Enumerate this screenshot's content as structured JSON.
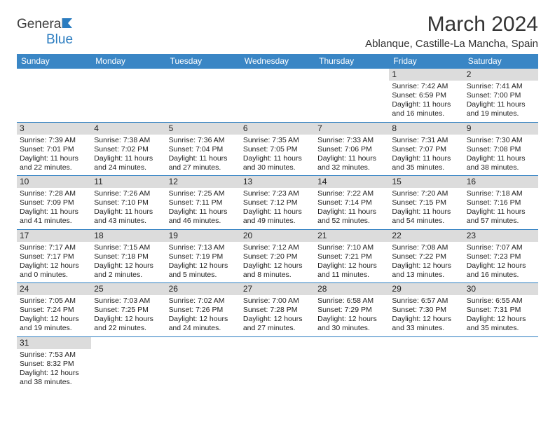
{
  "logo": {
    "text1": "General",
    "text2": "Blue"
  },
  "title": "March 2024",
  "location": "Ablanque, Castille-La Mancha, Spain",
  "weekdays": [
    "Sunday",
    "Monday",
    "Tuesday",
    "Wednesday",
    "Thursday",
    "Friday",
    "Saturday"
  ],
  "colors": {
    "header_bg": "#3a86c5",
    "daynum_bg": "#dcdcdc",
    "row_border": "#2a7cc0",
    "logo_blue": "#2a7cc0"
  },
  "weeks": [
    [
      null,
      null,
      null,
      null,
      null,
      {
        "n": "1",
        "sr": "Sunrise: 7:42 AM",
        "ss": "Sunset: 6:59 PM",
        "d1": "Daylight: 11 hours",
        "d2": "and 16 minutes."
      },
      {
        "n": "2",
        "sr": "Sunrise: 7:41 AM",
        "ss": "Sunset: 7:00 PM",
        "d1": "Daylight: 11 hours",
        "d2": "and 19 minutes."
      }
    ],
    [
      {
        "n": "3",
        "sr": "Sunrise: 7:39 AM",
        "ss": "Sunset: 7:01 PM",
        "d1": "Daylight: 11 hours",
        "d2": "and 22 minutes."
      },
      {
        "n": "4",
        "sr": "Sunrise: 7:38 AM",
        "ss": "Sunset: 7:02 PM",
        "d1": "Daylight: 11 hours",
        "d2": "and 24 minutes."
      },
      {
        "n": "5",
        "sr": "Sunrise: 7:36 AM",
        "ss": "Sunset: 7:04 PM",
        "d1": "Daylight: 11 hours",
        "d2": "and 27 minutes."
      },
      {
        "n": "6",
        "sr": "Sunrise: 7:35 AM",
        "ss": "Sunset: 7:05 PM",
        "d1": "Daylight: 11 hours",
        "d2": "and 30 minutes."
      },
      {
        "n": "7",
        "sr": "Sunrise: 7:33 AM",
        "ss": "Sunset: 7:06 PM",
        "d1": "Daylight: 11 hours",
        "d2": "and 32 minutes."
      },
      {
        "n": "8",
        "sr": "Sunrise: 7:31 AM",
        "ss": "Sunset: 7:07 PM",
        "d1": "Daylight: 11 hours",
        "d2": "and 35 minutes."
      },
      {
        "n": "9",
        "sr": "Sunrise: 7:30 AM",
        "ss": "Sunset: 7:08 PM",
        "d1": "Daylight: 11 hours",
        "d2": "and 38 minutes."
      }
    ],
    [
      {
        "n": "10",
        "sr": "Sunrise: 7:28 AM",
        "ss": "Sunset: 7:09 PM",
        "d1": "Daylight: 11 hours",
        "d2": "and 41 minutes."
      },
      {
        "n": "11",
        "sr": "Sunrise: 7:26 AM",
        "ss": "Sunset: 7:10 PM",
        "d1": "Daylight: 11 hours",
        "d2": "and 43 minutes."
      },
      {
        "n": "12",
        "sr": "Sunrise: 7:25 AM",
        "ss": "Sunset: 7:11 PM",
        "d1": "Daylight: 11 hours",
        "d2": "and 46 minutes."
      },
      {
        "n": "13",
        "sr": "Sunrise: 7:23 AM",
        "ss": "Sunset: 7:12 PM",
        "d1": "Daylight: 11 hours",
        "d2": "and 49 minutes."
      },
      {
        "n": "14",
        "sr": "Sunrise: 7:22 AM",
        "ss": "Sunset: 7:14 PM",
        "d1": "Daylight: 11 hours",
        "d2": "and 52 minutes."
      },
      {
        "n": "15",
        "sr": "Sunrise: 7:20 AM",
        "ss": "Sunset: 7:15 PM",
        "d1": "Daylight: 11 hours",
        "d2": "and 54 minutes."
      },
      {
        "n": "16",
        "sr": "Sunrise: 7:18 AM",
        "ss": "Sunset: 7:16 PM",
        "d1": "Daylight: 11 hours",
        "d2": "and 57 minutes."
      }
    ],
    [
      {
        "n": "17",
        "sr": "Sunrise: 7:17 AM",
        "ss": "Sunset: 7:17 PM",
        "d1": "Daylight: 12 hours",
        "d2": "and 0 minutes."
      },
      {
        "n": "18",
        "sr": "Sunrise: 7:15 AM",
        "ss": "Sunset: 7:18 PM",
        "d1": "Daylight: 12 hours",
        "d2": "and 2 minutes."
      },
      {
        "n": "19",
        "sr": "Sunrise: 7:13 AM",
        "ss": "Sunset: 7:19 PM",
        "d1": "Daylight: 12 hours",
        "d2": "and 5 minutes."
      },
      {
        "n": "20",
        "sr": "Sunrise: 7:12 AM",
        "ss": "Sunset: 7:20 PM",
        "d1": "Daylight: 12 hours",
        "d2": "and 8 minutes."
      },
      {
        "n": "21",
        "sr": "Sunrise: 7:10 AM",
        "ss": "Sunset: 7:21 PM",
        "d1": "Daylight: 12 hours",
        "d2": "and 11 minutes."
      },
      {
        "n": "22",
        "sr": "Sunrise: 7:08 AM",
        "ss": "Sunset: 7:22 PM",
        "d1": "Daylight: 12 hours",
        "d2": "and 13 minutes."
      },
      {
        "n": "23",
        "sr": "Sunrise: 7:07 AM",
        "ss": "Sunset: 7:23 PM",
        "d1": "Daylight: 12 hours",
        "d2": "and 16 minutes."
      }
    ],
    [
      {
        "n": "24",
        "sr": "Sunrise: 7:05 AM",
        "ss": "Sunset: 7:24 PM",
        "d1": "Daylight: 12 hours",
        "d2": "and 19 minutes."
      },
      {
        "n": "25",
        "sr": "Sunrise: 7:03 AM",
        "ss": "Sunset: 7:25 PM",
        "d1": "Daylight: 12 hours",
        "d2": "and 22 minutes."
      },
      {
        "n": "26",
        "sr": "Sunrise: 7:02 AM",
        "ss": "Sunset: 7:26 PM",
        "d1": "Daylight: 12 hours",
        "d2": "and 24 minutes."
      },
      {
        "n": "27",
        "sr": "Sunrise: 7:00 AM",
        "ss": "Sunset: 7:28 PM",
        "d1": "Daylight: 12 hours",
        "d2": "and 27 minutes."
      },
      {
        "n": "28",
        "sr": "Sunrise: 6:58 AM",
        "ss": "Sunset: 7:29 PM",
        "d1": "Daylight: 12 hours",
        "d2": "and 30 minutes."
      },
      {
        "n": "29",
        "sr": "Sunrise: 6:57 AM",
        "ss": "Sunset: 7:30 PM",
        "d1": "Daylight: 12 hours",
        "d2": "and 33 minutes."
      },
      {
        "n": "30",
        "sr": "Sunrise: 6:55 AM",
        "ss": "Sunset: 7:31 PM",
        "d1": "Daylight: 12 hours",
        "d2": "and 35 minutes."
      }
    ],
    [
      {
        "n": "31",
        "sr": "Sunrise: 7:53 AM",
        "ss": "Sunset: 8:32 PM",
        "d1": "Daylight: 12 hours",
        "d2": "and 38 minutes."
      },
      null,
      null,
      null,
      null,
      null,
      null
    ]
  ]
}
